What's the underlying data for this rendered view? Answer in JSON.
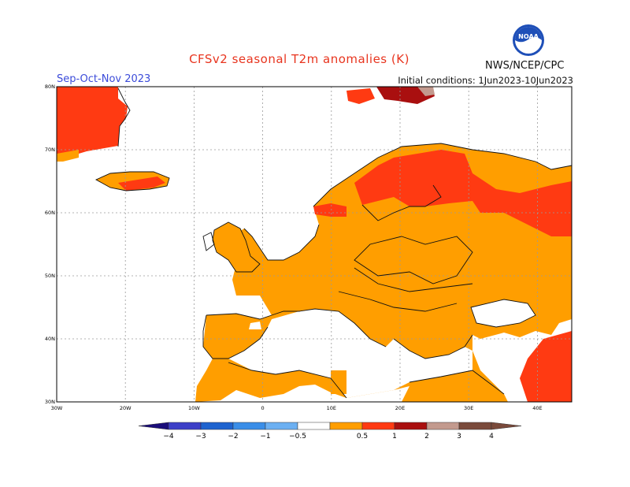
{
  "header": {
    "title": "CFSv2 seasonal T2m anomalies (K)",
    "season": "Sep-Oct-Nov 2023",
    "initial_conditions": "Initial conditions: 1Jun2023-10Jun2023",
    "agency": "NWS/NCEP/CPC",
    "logo_text": "NOAA"
  },
  "map": {
    "lon_labels": [
      "30W",
      "20W",
      "10W",
      "0",
      "10E",
      "20E",
      "30E",
      "40E"
    ],
    "lat_labels": [
      "30N",
      "40N",
      "50N",
      "60N",
      "70N",
      "80N"
    ],
    "lon_range": [
      -30,
      45
    ],
    "lat_range": [
      30,
      80
    ]
  },
  "legend": {
    "labels": [
      "−4",
      "−3",
      "−2",
      "−1",
      "−0.5",
      "0.5",
      "1",
      "2",
      "3",
      "4"
    ],
    "colors": [
      "#1a0d7a",
      "#3d3fc7",
      "#1e63cf",
      "#3a8ee8",
      "#6cb0f2",
      "#ffffff",
      "#ff9e00",
      "#ff3a12",
      "#a90f0f",
      "#c39a8e",
      "#7a4a3b",
      "#5a2f27"
    ]
  },
  "colors": {
    "anom_0_5_1": "#ff9e00",
    "anom_1_2": "#ff3a12",
    "anom_2_3": "#a90f0f",
    "anom_3_4": "#c39a8e"
  }
}
